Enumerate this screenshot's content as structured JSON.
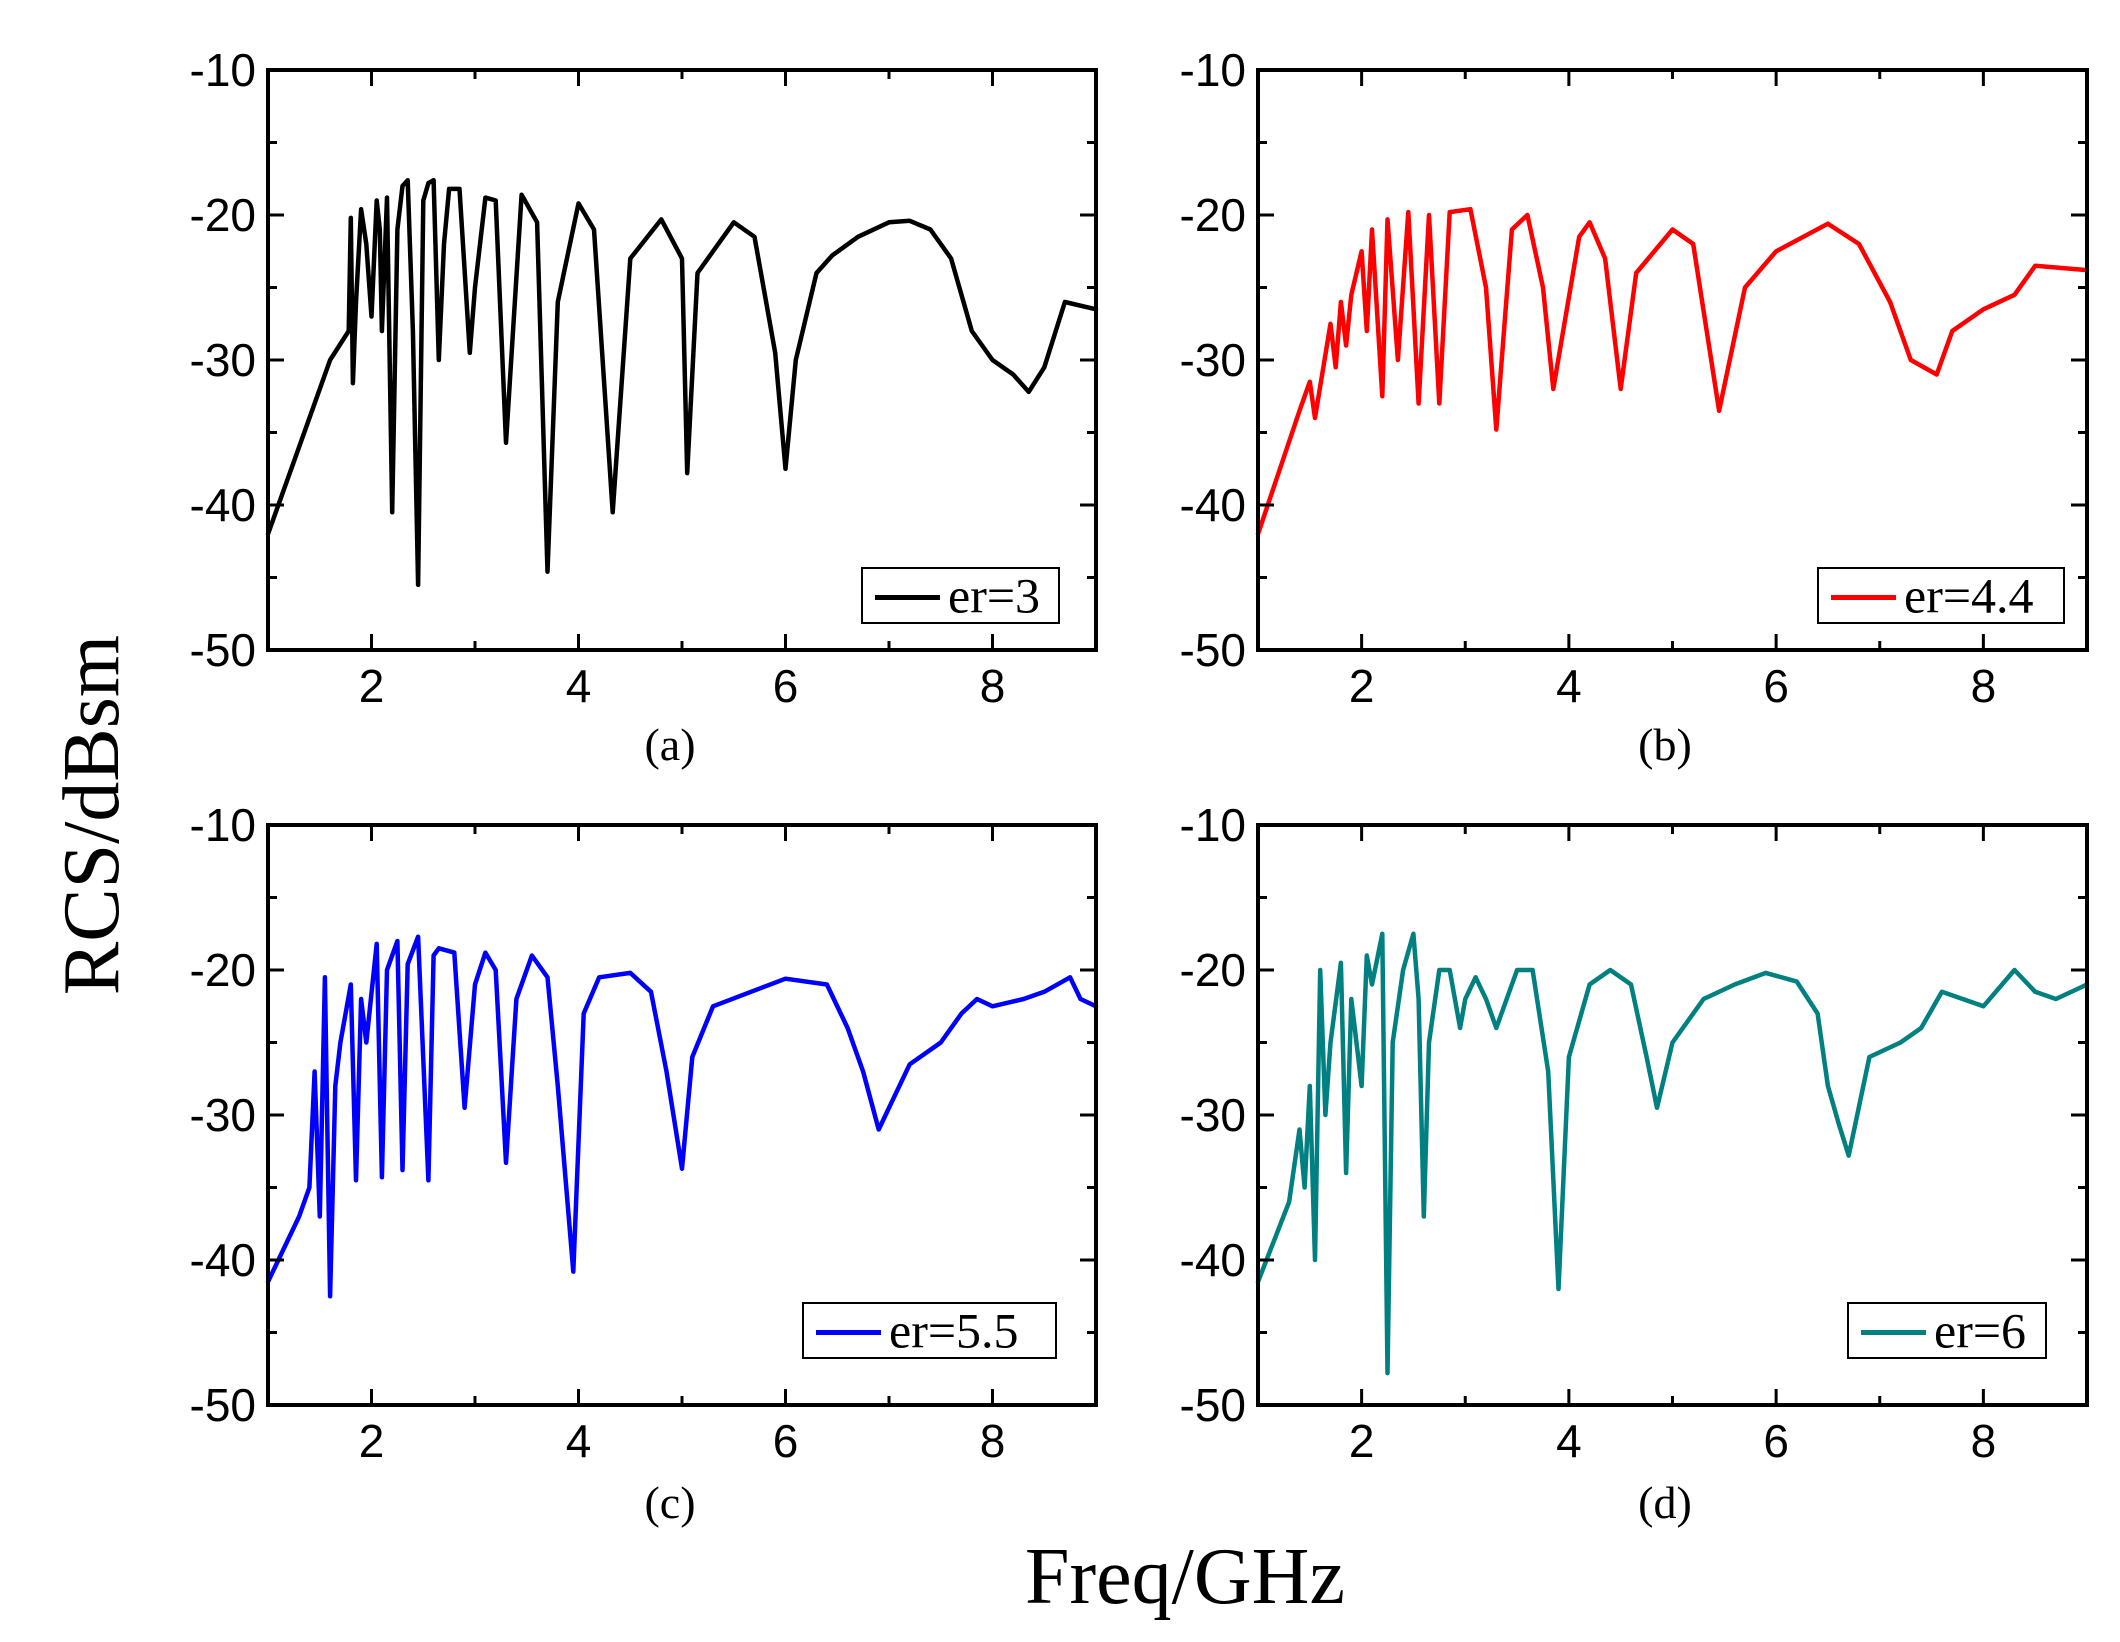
{
  "figure": {
    "ylabel": "RCS/dBsm",
    "xlabel": "Freq/GHz"
  },
  "chart_data": [
    {
      "type": "line",
      "panel_label": "(a)",
      "xlim": [
        1,
        9
      ],
      "ylim": [
        -50,
        -10
      ],
      "xticks": [
        2,
        4,
        6,
        8
      ],
      "yticks": [
        -10,
        -20,
        -30,
        -40,
        -50
      ],
      "legend": "top-right-lower",
      "color": "#000000",
      "series": [
        {
          "name": "er=3",
          "x": [
            1.0,
            1.3,
            1.6,
            1.78,
            1.8,
            1.82,
            1.85,
            1.9,
            1.95,
            2.0,
            2.05,
            2.08,
            2.1,
            2.15,
            2.2,
            2.25,
            2.3,
            2.35,
            2.4,
            2.45,
            2.5,
            2.55,
            2.6,
            2.65,
            2.7,
            2.75,
            2.85,
            2.95,
            3.0,
            3.1,
            3.2,
            3.3,
            3.45,
            3.6,
            3.7,
            3.8,
            4.0,
            4.15,
            4.33,
            4.5,
            4.8,
            5.0,
            5.05,
            5.15,
            5.5,
            5.7,
            5.9,
            6.0,
            6.1,
            6.3,
            6.45,
            6.7,
            7.0,
            7.2,
            7.4,
            7.6,
            7.8,
            8.0,
            8.2,
            8.35,
            8.5,
            8.7,
            9.0
          ],
          "y": [
            -42,
            -36,
            -30,
            -28,
            -20.2,
            -31.6,
            -26,
            -19.6,
            -22,
            -27,
            -19,
            -21,
            -28,
            -18.8,
            -40.5,
            -21,
            -18,
            -17.6,
            -28,
            -45.5,
            -19,
            -17.8,
            -17.6,
            -30,
            -22,
            -18.2,
            -18.2,
            -29.5,
            -25,
            -18.8,
            -19,
            -35.7,
            -18.6,
            -20.5,
            -44.6,
            -26,
            -19.2,
            -21,
            -40.5,
            -23,
            -20.3,
            -23,
            -37.8,
            -24,
            -20.5,
            -21.5,
            -29.5,
            -37.5,
            -30,
            -24,
            -22.8,
            -21.5,
            -20.5,
            -20.4,
            -21,
            -23,
            -28,
            -30,
            -31,
            -32.2,
            -30.5,
            -26,
            -26.5
          ]
        }
      ]
    },
    {
      "type": "line",
      "panel_label": "(b)",
      "xlim": [
        1,
        9
      ],
      "ylim": [
        -50,
        -10
      ],
      "xticks": [
        2,
        4,
        6,
        8
      ],
      "yticks": [
        -10,
        -20,
        -30,
        -40,
        -50
      ],
      "legend": "top-right-lower",
      "color": "#ff0000",
      "series": [
        {
          "name": "er=4.4",
          "x": [
            1.0,
            1.4,
            1.5,
            1.55,
            1.7,
            1.75,
            1.8,
            1.85,
            1.9,
            2.0,
            2.05,
            2.1,
            2.2,
            2.25,
            2.35,
            2.45,
            2.55,
            2.65,
            2.75,
            2.85,
            3.05,
            3.2,
            3.3,
            3.45,
            3.6,
            3.75,
            3.85,
            4.1,
            4.2,
            4.35,
            4.5,
            4.65,
            5.0,
            5.2,
            5.45,
            5.7,
            6.0,
            6.5,
            6.8,
            7.1,
            7.3,
            7.55,
            7.7,
            8.0,
            8.3,
            8.5,
            9.0
          ],
          "y": [
            -42,
            -33.5,
            -31.5,
            -34,
            -27.5,
            -30.5,
            -26,
            -29,
            -25.5,
            -22.5,
            -28,
            -21,
            -32.5,
            -20.3,
            -30,
            -19.8,
            -33,
            -20,
            -33,
            -19.8,
            -19.6,
            -25,
            -34.8,
            -21,
            -20,
            -25,
            -32,
            -21.5,
            -20.5,
            -23,
            -32,
            -24,
            -21,
            -22,
            -33.5,
            -25,
            -22.5,
            -20.6,
            -22,
            -26,
            -30,
            -31,
            -28,
            -26.5,
            -25.5,
            -23.5,
            -23.8
          ]
        }
      ]
    },
    {
      "type": "line",
      "panel_label": "(c)",
      "xlim": [
        1,
        9
      ],
      "ylim": [
        -50,
        -10
      ],
      "xticks": [
        2,
        4,
        6,
        8
      ],
      "yticks": [
        -10,
        -20,
        -30,
        -40,
        -50
      ],
      "legend": "bottom-right",
      "color": "#0000ff",
      "series": [
        {
          "name": "er=5.5",
          "x": [
            1.0,
            1.3,
            1.4,
            1.45,
            1.5,
            1.55,
            1.6,
            1.65,
            1.7,
            1.8,
            1.85,
            1.9,
            1.95,
            2.05,
            2.1,
            2.15,
            2.25,
            2.3,
            2.35,
            2.45,
            2.55,
            2.6,
            2.65,
            2.8,
            2.9,
            3.0,
            3.1,
            3.2,
            3.3,
            3.4,
            3.55,
            3.7,
            3.8,
            3.95,
            4.05,
            4.2,
            4.5,
            4.7,
            4.85,
            5.0,
            5.1,
            5.3,
            6.0,
            6.4,
            6.6,
            6.75,
            6.9,
            7.0,
            7.2,
            7.5,
            7.7,
            7.85,
            8.0,
            8.3,
            8.5,
            8.75,
            8.85,
            9.0
          ],
          "y": [
            -41.5,
            -37,
            -35,
            -27,
            -37,
            -20.5,
            -42.5,
            -28,
            -25,
            -21,
            -34.5,
            -22,
            -25,
            -18.2,
            -34.3,
            -20,
            -18,
            -33.8,
            -19.6,
            -17.7,
            -34.5,
            -19,
            -18.5,
            -18.8,
            -29.5,
            -21,
            -18.8,
            -20,
            -33.3,
            -22,
            -19,
            -20.5,
            -28,
            -40.8,
            -23,
            -20.5,
            -20.2,
            -21.5,
            -27,
            -33.7,
            -26,
            -22.5,
            -20.6,
            -21,
            -24,
            -27,
            -31,
            -29.5,
            -26.5,
            -25,
            -23,
            -22,
            -22.5,
            -22,
            -21.5,
            -20.5,
            -22,
            -22.5
          ]
        }
      ]
    },
    {
      "type": "line",
      "panel_label": "(d)",
      "xlim": [
        1,
        9
      ],
      "ylim": [
        -50,
        -10
      ],
      "xticks": [
        2,
        4,
        6,
        8
      ],
      "yticks": [
        -10,
        -20,
        -30,
        -40,
        -50
      ],
      "legend": "bottom-right",
      "color": "#008080",
      "series": [
        {
          "name": "er=6",
          "x": [
            1.0,
            1.3,
            1.4,
            1.45,
            1.5,
            1.55,
            1.6,
            1.65,
            1.7,
            1.8,
            1.85,
            1.9,
            2.0,
            2.05,
            2.1,
            2.2,
            2.25,
            2.3,
            2.4,
            2.5,
            2.55,
            2.6,
            2.65,
            2.75,
            2.85,
            2.95,
            3.0,
            3.1,
            3.2,
            3.3,
            3.4,
            3.5,
            3.65,
            3.8,
            3.9,
            4.0,
            4.2,
            4.4,
            4.6,
            4.75,
            4.85,
            5.0,
            5.3,
            5.6,
            5.9,
            6.2,
            6.4,
            6.5,
            6.6,
            6.7,
            6.9,
            7.2,
            7.4,
            7.6,
            7.8,
            8.0,
            8.3,
            8.5,
            8.7,
            9.0
          ],
          "y": [
            -41.5,
            -36,
            -31,
            -35,
            -28,
            -40,
            -20,
            -30,
            -25,
            -19.5,
            -34,
            -22,
            -28,
            -19,
            -21,
            -17.5,
            -47.8,
            -25,
            -20,
            -17.5,
            -22,
            -37,
            -25,
            -20,
            -20,
            -24,
            -22,
            -20.5,
            -22,
            -24,
            -22,
            -20,
            -20,
            -27,
            -42,
            -26,
            -21,
            -20,
            -21,
            -26,
            -29.5,
            -25,
            -22,
            -21,
            -20.2,
            -20.8,
            -23,
            -28,
            -30.5,
            -32.8,
            -26,
            -25,
            -24,
            -21.5,
            -22,
            -22.5,
            -20,
            -21.5,
            -22,
            -21
          ]
        }
      ]
    }
  ]
}
